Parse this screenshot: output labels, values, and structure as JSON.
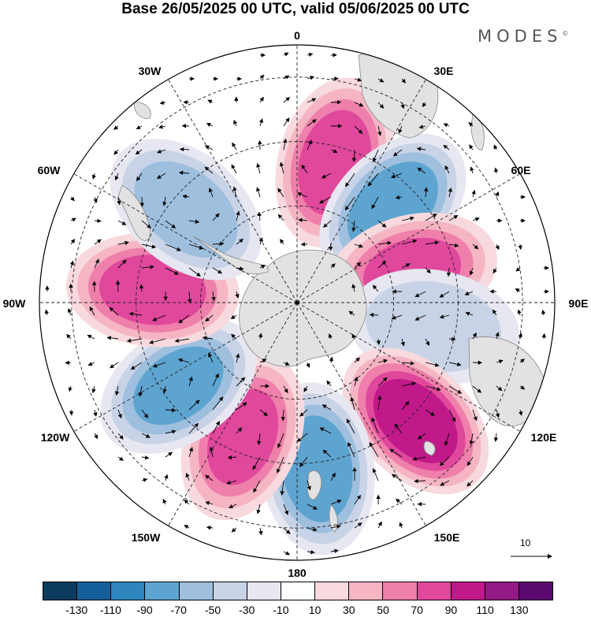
{
  "title": "Base 26/05/2025 00 UTC, valid 05/06/2025 00 UTC",
  "brand": "MODES",
  "brand_mark": "©",
  "longitude_labels": [
    "0",
    "30E",
    "60E",
    "90E",
    "120E",
    "150E",
    "180",
    "150W",
    "120W",
    "90W",
    "60W",
    "30W"
  ],
  "reference_vector": {
    "label": "10"
  },
  "colorbar": {
    "ticks": [
      "-130",
      "-110",
      "-90",
      "-70",
      "-50",
      "-30",
      "-10",
      "10",
      "30",
      "50",
      "70",
      "90",
      "110",
      "130"
    ],
    "colors": [
      "#0d3b5e",
      "#15609a",
      "#2f86bf",
      "#5ea4d0",
      "#9ebfde",
      "#c9d3e7",
      "#e6e7f1",
      "#ffffff",
      "#f8d9dd",
      "#f5b5c3",
      "#ef7fab",
      "#e0489c",
      "#c2198a",
      "#931b85",
      "#5a0a6e"
    ]
  },
  "anomaly_centers": [
    {
      "sign": "+",
      "lon": 15,
      "lat": -45,
      "value": 90
    },
    {
      "sign": "-",
      "lon": 45,
      "lat": -48,
      "value": -90
    },
    {
      "sign": "+",
      "lon": 75,
      "lat": -53,
      "value": 80
    },
    {
      "sign": "-",
      "lon": 100,
      "lat": -47,
      "value": -50
    },
    {
      "sign": "+",
      "lon": 135,
      "lat": -38,
      "value": 110
    },
    {
      "sign": "-",
      "lon": 173,
      "lat": -38,
      "value": -90
    },
    {
      "sign": "+",
      "lon": -158,
      "lat": -45,
      "value": 80
    },
    {
      "sign": "-",
      "lon": -125,
      "lat": -45,
      "value": -80
    },
    {
      "sign": "+",
      "lon": -85,
      "lat": -45,
      "value": 90
    },
    {
      "sign": "-",
      "lon": -50,
      "lat": -45,
      "value": -70
    }
  ]
}
